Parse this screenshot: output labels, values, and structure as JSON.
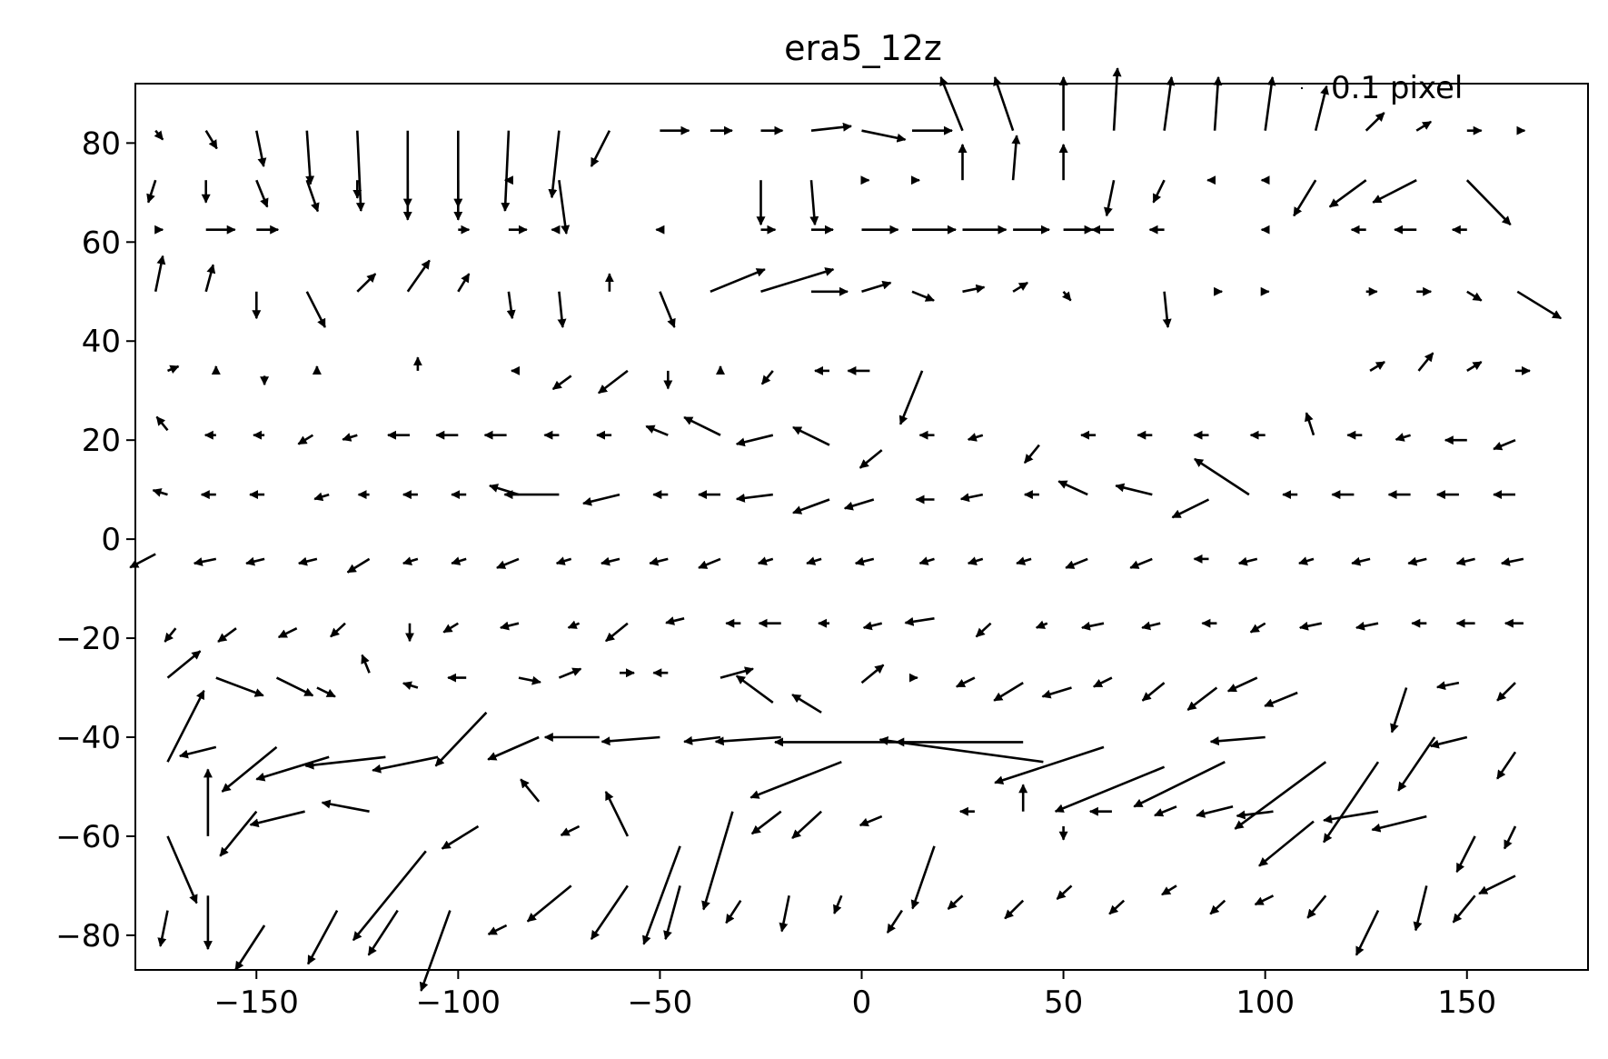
{
  "chart_data": {
    "type": "quiver",
    "title": "era5_12z",
    "xlabel": "",
    "ylabel": "",
    "xlim": [
      -180,
      180
    ],
    "ylim": [
      -87,
      92
    ],
    "xticks": [
      -150,
      -100,
      -50,
      0,
      50,
      100,
      150
    ],
    "yticks": [
      -80,
      -60,
      -40,
      -20,
      0,
      20,
      40,
      60,
      80
    ],
    "xtick_labels": [
      "−150",
      "−100",
      "−50",
      "0",
      "50",
      "100",
      "150"
    ],
    "ytick_labels": [
      "−80",
      "−60",
      "−40",
      "−20",
      "0",
      "20",
      "40",
      "60",
      "80"
    ],
    "grid": false,
    "legend": {
      "position": "top-right",
      "label": "0.1 pixel",
      "key_value": 0.1
    },
    "color": "#000000",
    "arrow_units": "degrees of x-axis",
    "x": [
      -175,
      -162.5,
      -150,
      -137.5,
      -125,
      -112.5,
      -100,
      -87.5,
      -75,
      -62.5,
      -50,
      -37.5,
      -25,
      -12.5,
      0,
      12.5,
      25,
      37.5,
      50,
      62.5,
      75,
      87.5,
      100,
      112.5,
      125,
      137.5,
      150,
      162.5
    ],
    "rows": [
      {
        "y": 82.5,
        "u": [
          2,
          3,
          2,
          1,
          1,
          0,
          0,
          -1,
          -2,
          -5,
          8,
          6,
          6,
          11,
          12,
          11,
          -6,
          -5,
          0,
          1,
          2,
          1,
          2,
          3,
          5,
          4,
          4,
          2
        ],
        "v": [
          -2,
          -4,
          -8,
          -12,
          -18,
          -20,
          -20,
          -18,
          -15,
          -8,
          0,
          0,
          0,
          1,
          -2,
          0,
          12,
          12,
          12,
          14,
          12,
          12,
          12,
          10,
          4,
          2,
          0,
          0
        ]
      },
      {
        "y": 72.5,
        "u": [
          -2,
          0,
          3,
          3,
          0,
          0,
          0,
          -1,
          2,
          0,
          0,
          0,
          0,
          1,
          2,
          2,
          0,
          1,
          0,
          -2,
          -3,
          -2,
          -1,
          -6,
          -10,
          -12,
          12,
          0
        ],
        "v": [
          -5,
          -5,
          -6,
          -7,
          -4,
          -6,
          -6,
          0,
          -12,
          0,
          0,
          0,
          -10,
          -10,
          0,
          0,
          8,
          10,
          8,
          -8,
          -5,
          0,
          0,
          -8,
          -6,
          -5,
          -10,
          0
        ]
      },
      {
        "y": 62.5,
        "u": [
          2,
          8,
          6,
          0,
          0,
          0,
          3,
          5,
          -2,
          0,
          -1,
          0,
          4,
          6,
          10,
          12,
          12,
          10,
          8,
          -6,
          -4,
          0,
          -1,
          0,
          -4,
          -6,
          -4,
          0
        ]
      },
      {
        "y": 50,
        "u": [
          2,
          2,
          0,
          5,
          5,
          6,
          3,
          1,
          1,
          0,
          4,
          15,
          20,
          10,
          8,
          6,
          6,
          4,
          2,
          0,
          1,
          2,
          1,
          0,
          3,
          4,
          4,
          12
        ],
        "v": [
          8,
          6,
          -6,
          -8,
          4,
          7,
          4,
          -6,
          -8,
          4,
          -8,
          5,
          5,
          0,
          2,
          -2,
          1,
          2,
          -2,
          0,
          -8,
          0,
          0,
          0,
          0,
          0,
          -2,
          -6
        ]
      }
    ],
    "vectors": [
      [
        -172,
        -28,
        9,
        6
      ],
      [
        -160,
        -28,
        13,
        -4
      ],
      [
        -145,
        -28,
        10,
        -4
      ],
      [
        -135,
        -30,
        5,
        -2
      ],
      [
        -122,
        -27,
        -2,
        4
      ],
      [
        -110,
        -30,
        -4,
        1
      ],
      [
        -98,
        -28,
        -5,
        0
      ],
      [
        -85,
        -28,
        6,
        -1
      ],
      [
        -75,
        -28,
        6,
        2
      ],
      [
        -60,
        -27,
        4,
        0
      ],
      [
        -48,
        -27,
        -4,
        0
      ],
      [
        -35,
        -28,
        9,
        2
      ],
      [
        -22,
        -33,
        -10,
        6
      ],
      [
        -10,
        -35,
        -8,
        4
      ],
      [
        0,
        -29,
        6,
        4
      ],
      [
        12,
        -28,
        2,
        0
      ],
      [
        28,
        -28,
        -5,
        -2
      ],
      [
        40,
        -29,
        -8,
        -4
      ],
      [
        52,
        -30,
        -8,
        -2
      ],
      [
        62,
        -28,
        -5,
        -2
      ],
      [
        75,
        -29,
        -6,
        -4
      ],
      [
        88,
        -30,
        -8,
        -5
      ],
      [
        98,
        -28,
        -8,
        -3
      ],
      [
        108,
        -31,
        -9,
        -3
      ],
      [
        122,
        -28,
        0,
        0
      ],
      [
        135,
        -30,
        -4,
        -10
      ],
      [
        148,
        -29,
        -6,
        -1
      ],
      [
        162,
        -29,
        -5,
        -4
      ],
      [
        -172,
        -45,
        10,
        16
      ],
      [
        -160,
        -42,
        -10,
        -2
      ],
      [
        -145,
        -42,
        -15,
        -10
      ],
      [
        -132,
        -44,
        -20,
        -5
      ],
      [
        -118,
        -44,
        -22,
        -2
      ],
      [
        -105,
        -44,
        -18,
        -3
      ],
      [
        -93,
        -35,
        -14,
        -12
      ],
      [
        -80,
        -40,
        -14,
        -5
      ],
      [
        -65,
        -40,
        -15,
        0
      ],
      [
        -50,
        -40,
        -16,
        -1
      ],
      [
        -35,
        -40,
        -10,
        -1
      ],
      [
        -20,
        -40,
        -18,
        -1
      ],
      [
        -5,
        -45,
        -25,
        -8
      ],
      [
        10,
        -41,
        -35,
        0
      ],
      [
        40,
        -41,
        -35,
        0
      ],
      [
        45,
        -45,
        -45,
        5
      ],
      [
        60,
        -42,
        -30,
        -8
      ],
      [
        75,
        -46,
        -30,
        -10
      ],
      [
        90,
        -45,
        -25,
        -10
      ],
      [
        100,
        -40,
        -15,
        -1
      ],
      [
        115,
        -45,
        -25,
        -15
      ],
      [
        128,
        -45,
        -15,
        -18
      ],
      [
        142,
        -40,
        -10,
        -12
      ],
      [
        150,
        -40,
        -10,
        -2
      ],
      [
        162,
        -43,
        -5,
        -6
      ],
      [
        -172,
        -60,
        8,
        -15
      ],
      [
        -162,
        -60,
        0,
        15
      ],
      [
        -150,
        -55,
        -10,
        -10
      ],
      [
        -138,
        -55,
        -15,
        -3
      ],
      [
        -122,
        -55,
        -13,
        2
      ],
      [
        -108,
        -63,
        -20,
        -20
      ],
      [
        -95,
        -58,
        -10,
        -5
      ],
      [
        -80,
        -53,
        -5,
        5
      ],
      [
        -70,
        -58,
        -5,
        -2
      ],
      [
        -58,
        -60,
        -6,
        10
      ],
      [
        -45,
        -62,
        -10,
        -22
      ],
      [
        -32,
        -55,
        -8,
        -22
      ],
      [
        -20,
        -55,
        -8,
        -5
      ],
      [
        -10,
        -55,
        -8,
        -6
      ],
      [
        5,
        -56,
        -6,
        -2
      ],
      [
        18,
        -62,
        -6,
        -14
      ],
      [
        28,
        -55,
        -4,
        0
      ],
      [
        40,
        -55,
        0,
        6
      ],
      [
        50,
        -58,
        0,
        -3
      ],
      [
        62,
        -55,
        -6,
        0
      ],
      [
        78,
        -54,
        -6,
        -2
      ],
      [
        92,
        -54,
        -10,
        -2
      ],
      [
        102,
        -55,
        -10,
        -1
      ],
      [
        112,
        -57,
        -15,
        -10
      ],
      [
        128,
        -55,
        -15,
        -2
      ],
      [
        140,
        -56,
        -15,
        -3
      ],
      [
        152,
        -60,
        -5,
        -8
      ],
      [
        162,
        -58,
        -3,
        -5
      ],
      [
        -172,
        -75,
        -2,
        -8
      ],
      [
        -162,
        -72,
        0,
        -12
      ],
      [
        -148,
        -78,
        -8,
        -10
      ],
      [
        -130,
        -75,
        -8,
        -12
      ],
      [
        -115,
        -75,
        -8,
        -10
      ],
      [
        -102,
        -75,
        -8,
        -18
      ],
      [
        -88,
        -78,
        -5,
        -2
      ],
      [
        -72,
        -70,
        -12,
        -8
      ],
      [
        -58,
        -70,
        -10,
        -12
      ],
      [
        -45,
        -70,
        -4,
        -12
      ],
      [
        -30,
        -73,
        -4,
        -5
      ],
      [
        -18,
        -72,
        -2,
        -8
      ],
      [
        -5,
        -72,
        -2,
        -4
      ],
      [
        10,
        -75,
        -4,
        -5
      ],
      [
        25,
        -72,
        -4,
        -3
      ],
      [
        40,
        -73,
        -5,
        -4
      ],
      [
        52,
        -70,
        -4,
        -3
      ],
      [
        65,
        -73,
        -4,
        -3
      ],
      [
        78,
        -70,
        -4,
        -2
      ],
      [
        90,
        -73,
        -4,
        -3
      ],
      [
        102,
        -72,
        -5,
        -2
      ],
      [
        115,
        -72,
        -5,
        -5
      ],
      [
        128,
        -75,
        -6,
        -10
      ],
      [
        140,
        -70,
        -3,
        -10
      ],
      [
        152,
        -72,
        -6,
        -6
      ],
      [
        162,
        -68,
        -10,
        -4
      ],
      [
        -170,
        -18,
        -3,
        -3
      ],
      [
        -155,
        -18,
        -5,
        -3
      ],
      [
        -140,
        -18,
        -5,
        -2
      ],
      [
        -128,
        -17,
        -4,
        -3
      ],
      [
        -112,
        -17,
        0,
        -4
      ],
      [
        -100,
        -17,
        -4,
        -2
      ],
      [
        -85,
        -17,
        -5,
        -1
      ],
      [
        -70,
        -17,
        -3,
        -1
      ],
      [
        -58,
        -17,
        -6,
        -4
      ],
      [
        -44,
        -16,
        -5,
        -1
      ],
      [
        -30,
        -17,
        -4,
        0
      ],
      [
        -20,
        -17,
        -6,
        0
      ],
      [
        -8,
        -17,
        -3,
        0
      ],
      [
        5,
        -17,
        -5,
        -1
      ],
      [
        18,
        -16,
        -8,
        -1
      ],
      [
        32,
        -17,
        -4,
        -3
      ],
      [
        46,
        -17,
        -3,
        -1
      ],
      [
        60,
        -17,
        -6,
        -1
      ],
      [
        74,
        -17,
        -5,
        -1
      ],
      [
        88,
        -17,
        -4,
        0
      ],
      [
        100,
        -17,
        -4,
        -2
      ],
      [
        114,
        -17,
        -6,
        -1
      ],
      [
        128,
        -17,
        -6,
        -1
      ],
      [
        140,
        -17,
        -4,
        0
      ],
      [
        152,
        -17,
        -5,
        0
      ],
      [
        164,
        -17,
        -5,
        0
      ],
      [
        -175,
        -3,
        -7,
        -3
      ],
      [
        -160,
        -4,
        -6,
        -1
      ],
      [
        -148,
        -4,
        -5,
        -1
      ],
      [
        -135,
        -4,
        -5,
        -1
      ],
      [
        -122,
        -4,
        -6,
        -3
      ],
      [
        -110,
        -4,
        -4,
        -1
      ],
      [
        -98,
        -4,
        -4,
        -1
      ],
      [
        -85,
        -4,
        -6,
        -2
      ],
      [
        -72,
        -4,
        -4,
        -1
      ],
      [
        -60,
        -4,
        -5,
        -1
      ],
      [
        -48,
        -4,
        -5,
        -1
      ],
      [
        -35,
        -4,
        -6,
        -2
      ],
      [
        -22,
        -4,
        -4,
        -1
      ],
      [
        -10,
        -4,
        -4,
        -1
      ],
      [
        3,
        -4,
        -5,
        -1
      ],
      [
        18,
        -4,
        -4,
        -1
      ],
      [
        30,
        -4,
        -4,
        -1
      ],
      [
        42,
        -4,
        -4,
        -1
      ],
      [
        56,
        -4,
        -6,
        -2
      ],
      [
        72,
        -4,
        -6,
        -2
      ],
      [
        86,
        -4,
        -4,
        0
      ],
      [
        98,
        -4,
        -5,
        -1
      ],
      [
        112,
        -4,
        -4,
        -1
      ],
      [
        126,
        -4,
        -5,
        -1
      ],
      [
        140,
        -4,
        -5,
        -1
      ],
      [
        152,
        -4,
        -5,
        -1
      ],
      [
        164,
        -4,
        -6,
        -1
      ],
      [
        -172,
        9,
        -4,
        1
      ],
      [
        -160,
        9,
        -4,
        0
      ],
      [
        -148,
        9,
        -4,
        0
      ],
      [
        -132,
        9,
        -4,
        -1
      ],
      [
        -122,
        9,
        -3,
        0
      ],
      [
        -110,
        9,
        -4,
        0
      ],
      [
        -98,
        9,
        -4,
        0
      ],
      [
        -85,
        9,
        -8,
        2
      ],
      [
        -75,
        9,
        -15,
        0
      ],
      [
        -60,
        9,
        -10,
        -2
      ],
      [
        -48,
        9,
        -4,
        0
      ],
      [
        -35,
        9,
        -6,
        0
      ],
      [
        -22,
        9,
        -10,
        -1
      ],
      [
        -8,
        8,
        -10,
        -3
      ],
      [
        3,
        8,
        -8,
        -2
      ],
      [
        18,
        8,
        -5,
        0
      ],
      [
        30,
        9,
        -6,
        -1
      ],
      [
        44,
        9,
        -4,
        0
      ],
      [
        56,
        9,
        -8,
        3
      ],
      [
        72,
        9,
        -10,
        2
      ],
      [
        86,
        8,
        -10,
        -4
      ],
      [
        96,
        9,
        -15,
        8
      ],
      [
        108,
        9,
        -4,
        0
      ],
      [
        122,
        9,
        -6,
        0
      ],
      [
        136,
        9,
        -6,
        0
      ],
      [
        148,
        9,
        -6,
        0
      ],
      [
        162,
        9,
        -6,
        0
      ],
      [
        -172,
        22,
        -3,
        3
      ],
      [
        -160,
        21,
        -3,
        0
      ],
      [
        -148,
        21,
        -3,
        0
      ],
      [
        -136,
        21,
        -4,
        -2
      ],
      [
        -125,
        21,
        -4,
        -1
      ],
      [
        -112,
        21,
        -6,
        0
      ],
      [
        -100,
        21,
        -6,
        0
      ],
      [
        -88,
        21,
        -6,
        0
      ],
      [
        -75,
        21,
        -4,
        0
      ],
      [
        -62,
        21,
        -4,
        0
      ],
      [
        -48,
        21,
        -6,
        2
      ],
      [
        -35,
        21,
        -10,
        4
      ],
      [
        -22,
        21,
        -10,
        -2
      ],
      [
        -8,
        19,
        -10,
        4
      ],
      [
        5,
        18,
        -6,
        -4
      ],
      [
        18,
        21,
        -4,
        0
      ],
      [
        30,
        21,
        -4,
        -1
      ],
      [
        44,
        19,
        -4,
        -4
      ],
      [
        58,
        21,
        -4,
        0
      ],
      [
        72,
        21,
        -4,
        0
      ],
      [
        86,
        21,
        -4,
        0
      ],
      [
        100,
        21,
        -4,
        0
      ],
      [
        112,
        21,
        -2,
        5
      ],
      [
        124,
        21,
        -4,
        0
      ],
      [
        136,
        21,
        -4,
        -1
      ],
      [
        150,
        20,
        -6,
        0
      ],
      [
        162,
        20,
        -6,
        -2
      ],
      [
        -172,
        34,
        3,
        1
      ],
      [
        -160,
        34,
        0,
        1
      ],
      [
        -148,
        33,
        0,
        -2
      ],
      [
        -135,
        34,
        0,
        1
      ],
      [
        -122,
        34,
        0,
        0
      ],
      [
        -110,
        34,
        0,
        3
      ],
      [
        -98,
        34,
        0,
        0
      ],
      [
        -85,
        34,
        -2,
        0
      ],
      [
        -72,
        33,
        -5,
        -3
      ],
      [
        -58,
        34,
        -8,
        -5
      ],
      [
        -48,
        34,
        0,
        -4
      ],
      [
        -35,
        34,
        0,
        1
      ],
      [
        -22,
        34,
        -3,
        -3
      ],
      [
        -8,
        34,
        -4,
        0
      ],
      [
        2,
        34,
        -6,
        0
      ],
      [
        15,
        34,
        -6,
        -12
      ],
      [
        28,
        34,
        0,
        0
      ],
      [
        40,
        34,
        0,
        0
      ],
      [
        52,
        34,
        0,
        0
      ],
      [
        64,
        34,
        0,
        0
      ],
      [
        78,
        34,
        0,
        0
      ],
      [
        90,
        34,
        0,
        0
      ],
      [
        102,
        34,
        0,
        0
      ],
      [
        114,
        34,
        0,
        0
      ],
      [
        126,
        34,
        4,
        2
      ],
      [
        138,
        34,
        4,
        4
      ],
      [
        150,
        34,
        4,
        2
      ],
      [
        162,
        34,
        4,
        0
      ]
    ]
  }
}
